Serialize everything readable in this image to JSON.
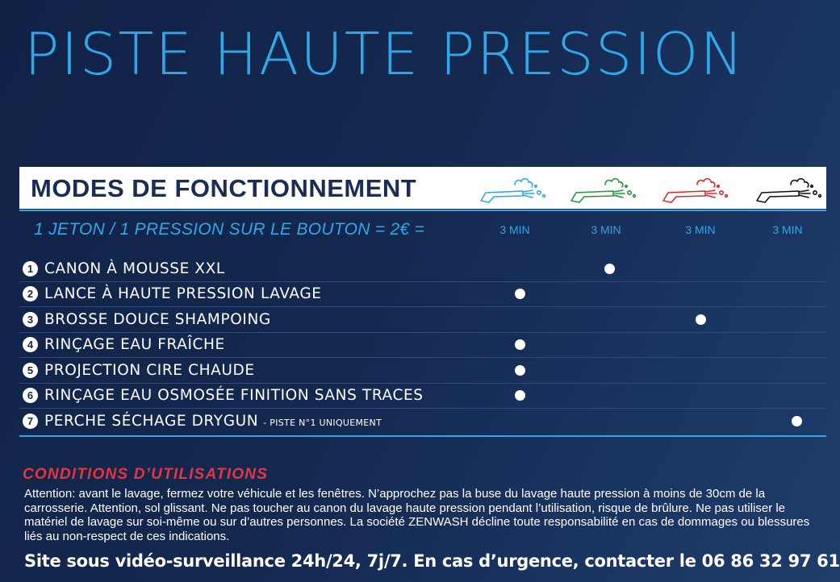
{
  "title": "PISTE HAUTE PRESSION",
  "modes": {
    "heading": "MODES DE FONCTIONNEMENT",
    "pricing": "1 JETON / 1 PRESSION SUR LE BOUTON = 2€ =",
    "columns": [
      {
        "icon": "blue-pressure-gun-icon",
        "color": "#2ea8e8",
        "duration": "3 MIN"
      },
      {
        "icon": "green-pressure-gun-icon",
        "color": "#1e9a3c",
        "duration": "3 MIN"
      },
      {
        "icon": "red-pressure-gun-icon",
        "color": "#e2262c",
        "duration": "3 MIN"
      },
      {
        "icon": "black-pressure-gun-icon",
        "color": "#111111",
        "duration": "3 MIN"
      }
    ],
    "rows": [
      {
        "num": "1",
        "label": "CANON À MOUSSE XXL",
        "note": "",
        "column": 2
      },
      {
        "num": "2",
        "label": "LANCE À HAUTE PRESSION LAVAGE",
        "note": "",
        "column": 1
      },
      {
        "num": "3",
        "label": "BROSSE DOUCE SHAMPOING",
        "note": "",
        "column": 3
      },
      {
        "num": "4",
        "label": "RINÇAGE EAU FRAÎCHE",
        "note": "",
        "column": 1
      },
      {
        "num": "5",
        "label": "PROJECTION CIRE CHAUDE",
        "note": "",
        "column": 1
      },
      {
        "num": "6",
        "label": "RINÇAGE EAU OSMOSÉE FINITION SANS TRACES",
        "note": "",
        "column": 1
      },
      {
        "num": "7",
        "label": "PERCHE SÉCHAGE DRYGUN",
        "note": "- PISTE N°1 UNIQUEMENT",
        "column": 4
      }
    ]
  },
  "conditions": {
    "heading": "CONDITIONS D’UTILISATIONS",
    "text": "Attention: avant le lavage, fermez votre véhicule et les fenêtres. N’approchez pas la buse du lavage haute pression à moins de 30cm de la carrosserie. Attention, sol glissant. Ne pas toucher au canon du lavage haute pression pendant l’utilisation, risque de brûlure. Ne pas utiliser le matériel de lavage sur soi-même ou sur d’autres personnes. La société ZENWASH décline toute responsabilité en cas de dommages ou blessures liés au non-respect de ces indications."
  },
  "footer": "Site sous vidéo-surveillance 24h/24, 7j/7. En cas d’urgence, contacter le 06 86 32 97 61"
}
